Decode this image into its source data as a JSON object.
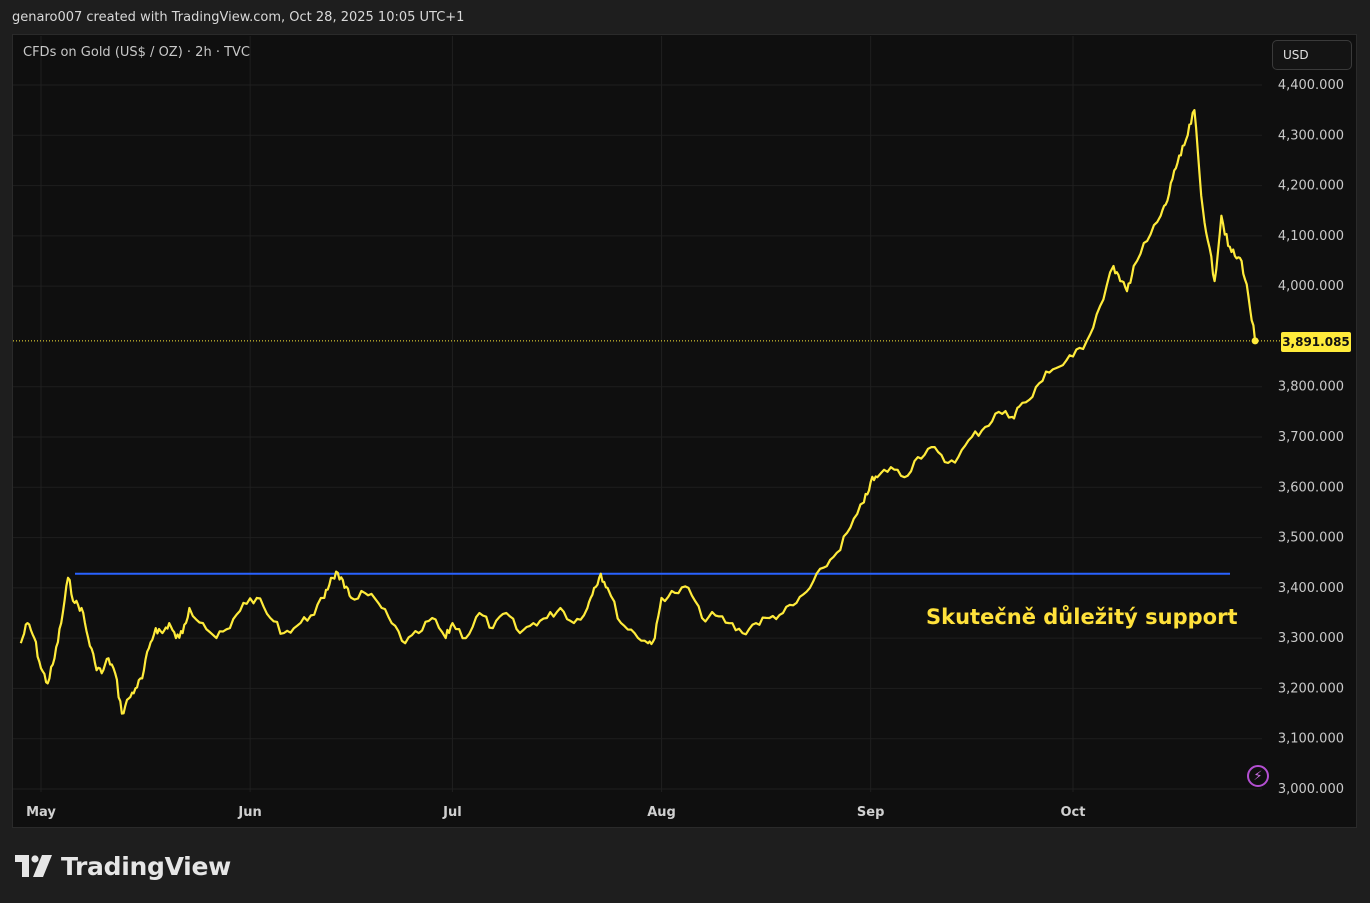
{
  "header": {
    "attribution": "genaro007 created with TradingView.com, Oct 28, 2025 10:05 UTC+1"
  },
  "legend": {
    "symbol_title": "CFDs on Gold (US$ / OZ) · 2h · TVC"
  },
  "toolbar": {
    "currency_label": "USD"
  },
  "brand": {
    "name": "TradingView"
  },
  "colors": {
    "background": "#0f0f0f",
    "grid": "#1f1f1f",
    "price_line": "#ffeb3b",
    "support_line": "#2962ff",
    "annotation": "#ffe13b"
  },
  "chart_data": {
    "type": "line",
    "x_ticks": [
      "May",
      "Jun",
      "Jul",
      "Aug",
      "Sep",
      "Oct"
    ],
    "y_ticks": [
      "4,400.000",
      "4,300.000",
      "4,200.000",
      "4,100.000",
      "4,000.000",
      "3,800.000",
      "3,700.000",
      "3,600.000",
      "3,500.000",
      "3,400.000",
      "3,300.000",
      "3,200.000",
      "3,100.000",
      "3,000.000"
    ],
    "ylim": [
      3000,
      4400
    ],
    "last_price": 3891.085,
    "last_price_label": "3,891.085",
    "support_level": 3428,
    "support_label": "Skutečně důležitý support",
    "series": [
      {
        "x": [
          "2025-04-28",
          "2025-04-29",
          "2025-04-30",
          "2025-05-01",
          "2025-05-02",
          "2025-05-03",
          "2025-05-04",
          "2025-05-05",
          "2025-05-06",
          "2025-05-07",
          "2025-05-08",
          "2025-05-09",
          "2025-05-10",
          "2025-05-11",
          "2025-05-12",
          "2025-05-13",
          "2025-05-14",
          "2025-05-15",
          "2025-05-16",
          "2025-05-17",
          "2025-05-18",
          "2025-05-19",
          "2025-05-20",
          "2025-05-21",
          "2025-05-22",
          "2025-05-23",
          "2025-05-25",
          "2025-05-27",
          "2025-05-29",
          "2025-05-31",
          "2025-06-02",
          "2025-06-04",
          "2025-06-06",
          "2025-06-08",
          "2025-06-10",
          "2025-06-12",
          "2025-06-13",
          "2025-06-14",
          "2025-06-15",
          "2025-06-16",
          "2025-06-18",
          "2025-06-20",
          "2025-06-22",
          "2025-06-24",
          "2025-06-26",
          "2025-06-28",
          "2025-06-30",
          "2025-07-01",
          "2025-07-03",
          "2025-07-05",
          "2025-07-07",
          "2025-07-09",
          "2025-07-11",
          "2025-07-13",
          "2025-07-15",
          "2025-07-17",
          "2025-07-19",
          "2025-07-21",
          "2025-07-22",
          "2025-07-23",
          "2025-07-24",
          "2025-07-26",
          "2025-07-28",
          "2025-07-30",
          "2025-07-31",
          "2025-08-01",
          "2025-08-03",
          "2025-08-05",
          "2025-08-07",
          "2025-08-09",
          "2025-08-11",
          "2025-08-13",
          "2025-08-15",
          "2025-08-17",
          "2025-08-19",
          "2025-08-21",
          "2025-08-23",
          "2025-08-25",
          "2025-08-27",
          "2025-08-29",
          "2025-08-31",
          "2025-09-01",
          "2025-09-02",
          "2025-09-04",
          "2025-09-06",
          "2025-09-08",
          "2025-09-10",
          "2025-09-12",
          "2025-09-14",
          "2025-09-16",
          "2025-09-18",
          "2025-09-20",
          "2025-09-22",
          "2025-09-23",
          "2025-09-25",
          "2025-09-27",
          "2025-09-29",
          "2025-10-01",
          "2025-10-03",
          "2025-10-05",
          "2025-10-07",
          "2025-10-08",
          "2025-10-09",
          "2025-10-10",
          "2025-10-12",
          "2025-10-14",
          "2025-10-15",
          "2025-10-16",
          "2025-10-17",
          "2025-10-18",
          "2025-10-19",
          "2025-10-20",
          "2025-10-21",
          "2025-10-22",
          "2025-10-23",
          "2025-10-24",
          "2025-10-25",
          "2025-10-26",
          "2025-10-27",
          "2025-10-28"
        ],
        "values": [
          3290,
          3330,
          3300,
          3240,
          3210,
          3260,
          3330,
          3420,
          3370,
          3360,
          3300,
          3250,
          3230,
          3260,
          3230,
          3150,
          3180,
          3200,
          3220,
          3280,
          3320,
          3310,
          3330,
          3300,
          3310,
          3360,
          3330,
          3300,
          3320,
          3370,
          3380,
          3340,
          3310,
          3325,
          3345,
          3380,
          3420,
          3430,
          3400,
          3380,
          3390,
          3370,
          3330,
          3290,
          3310,
          3340,
          3300,
          3330,
          3300,
          3350,
          3320,
          3350,
          3310,
          3330,
          3340,
          3360,
          3330,
          3360,
          3400,
          3428,
          3400,
          3330,
          3310,
          3290,
          3300,
          3380,
          3390,
          3400,
          3340,
          3345,
          3330,
          3310,
          3330,
          3340,
          3350,
          3370,
          3400,
          3440,
          3470,
          3520,
          3570,
          3610,
          3620,
          3640,
          3620,
          3660,
          3680,
          3650,
          3660,
          3700,
          3720,
          3750,
          3740,
          3760,
          3780,
          3830,
          3840,
          3860,
          3890,
          3960,
          4040,
          4010,
          3990,
          4040,
          4090,
          4140,
          4170,
          4230,
          4260,
          4300,
          4350,
          4180,
          4090,
          4010,
          4140,
          4080,
          4060,
          4050,
          3980,
          3891
        ]
      }
    ]
  }
}
